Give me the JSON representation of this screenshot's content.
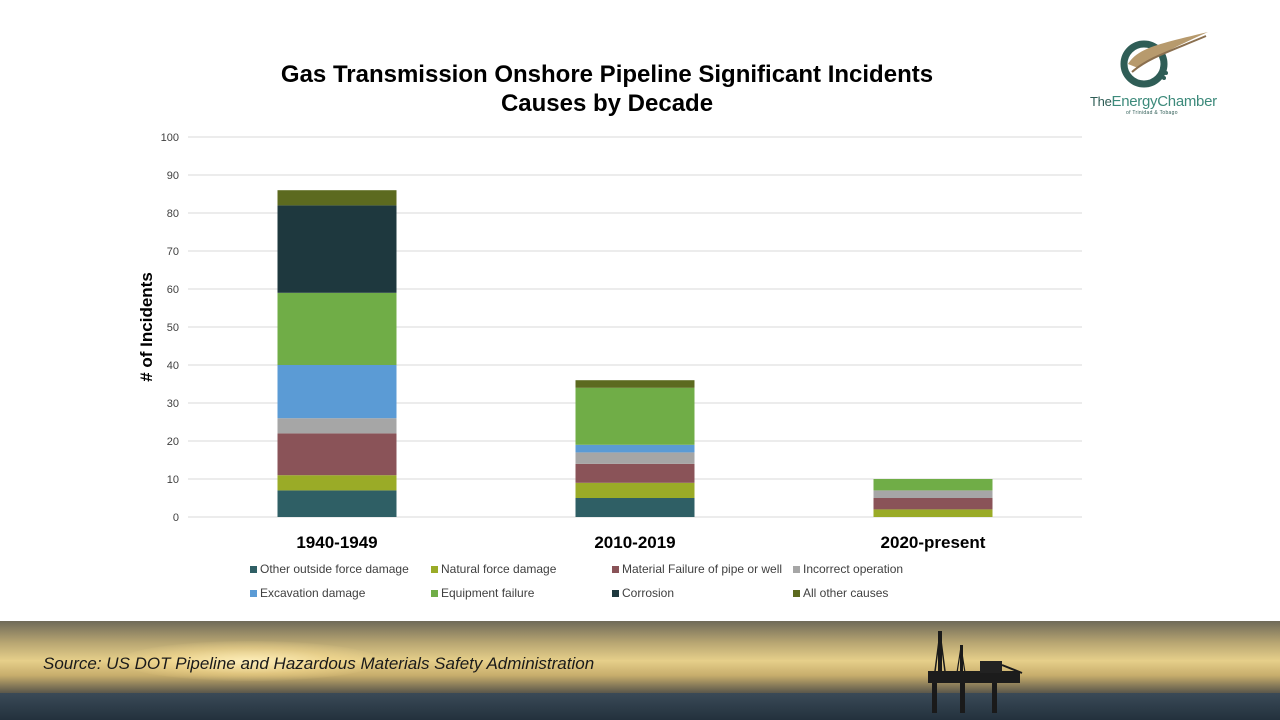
{
  "chart_data": {
    "type": "bar",
    "stacked": true,
    "title": [
      "Gas Transmission Onshore Pipeline Significant Incidents",
      "Causes by Decade"
    ],
    "ylabel": "# of Incidents",
    "xlabel": "",
    "ylim": [
      0,
      100
    ],
    "yticks": [
      0,
      10,
      20,
      30,
      40,
      50,
      60,
      70,
      80,
      90,
      100
    ],
    "grid": true,
    "legend_position": "bottom",
    "categories": [
      "1940-1949",
      "2010-2019",
      "2020-present"
    ],
    "series": [
      {
        "name": "Other outside force damage",
        "color": "#2f5f65",
        "values": [
          7,
          5,
          0
        ]
      },
      {
        "name": "Natural force damage",
        "color": "#9aab27",
        "values": [
          4,
          4,
          2
        ]
      },
      {
        "name": "Material Failure of pipe or well",
        "color": "#8a5358",
        "values": [
          11,
          5,
          3
        ]
      },
      {
        "name": "Incorrect operation",
        "color": "#a6a6a6",
        "values": [
          4,
          3,
          2
        ]
      },
      {
        "name": "Excavation damage",
        "color": "#5b9bd5",
        "values": [
          14,
          2,
          0
        ]
      },
      {
        "name": "Equipment failure",
        "color": "#70ad47",
        "values": [
          19,
          15,
          3
        ]
      },
      {
        "name": "Corrosion",
        "color": "#1e383e",
        "values": [
          23,
          0,
          0
        ]
      },
      {
        "name": "All other causes",
        "color": "#5c6a1f",
        "values": [
          4,
          2,
          0
        ]
      }
    ]
  },
  "logo": {
    "text_prefix": "The",
    "text_main": "EnergyChamber",
    "subtitle": "of Trinidad & Tobago"
  },
  "source": "Source: US DOT Pipeline and Hazardous Materials Safety Administration",
  "colors": {
    "grid": "#d9d9d9",
    "axis_text": "#404040",
    "logo_teal": "#2f5d56",
    "logo_accent": "#b79a6d"
  }
}
